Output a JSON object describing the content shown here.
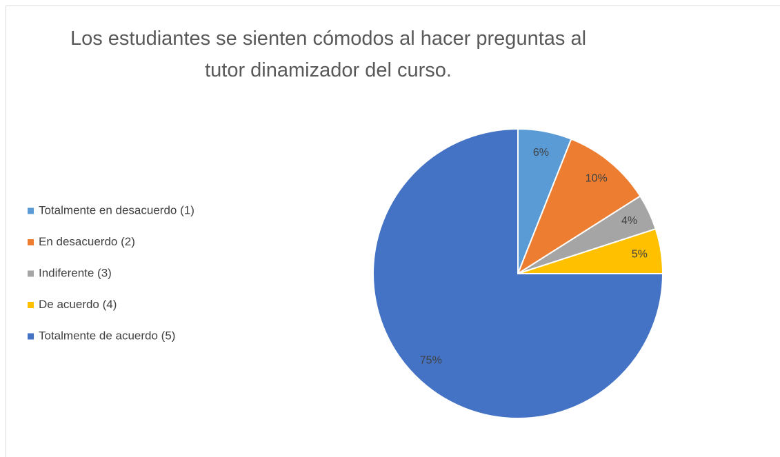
{
  "chart_data": {
    "type": "pie",
    "title": "Los estudiantes se sienten cómodos al hacer preguntas al tutor dinamizador del curso.",
    "categories": [
      "Totalmente en desacuerdo (1)",
      "En desacuerdo (2)",
      "Indiferente (3)",
      "De acuerdo (4)",
      "Totalmente de acuerdo (5)"
    ],
    "values": [
      6,
      10,
      4,
      5,
      75
    ],
    "value_labels": [
      "6%",
      "10%",
      "4%",
      "5%",
      "75%"
    ],
    "colors": [
      "#5b9bd5",
      "#ed7d31",
      "#a5a5a5",
      "#ffc000",
      "#4472c4"
    ],
    "legend": "left"
  }
}
